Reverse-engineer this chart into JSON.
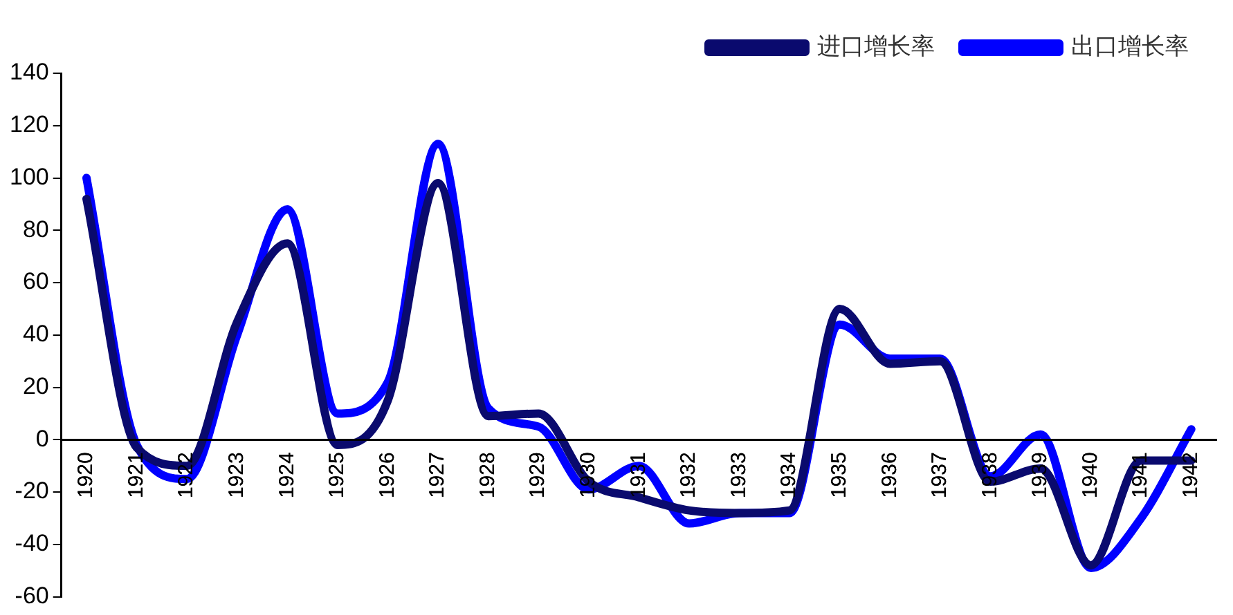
{
  "chart_data": {
    "type": "line",
    "categories": [
      "1920",
      "1921",
      "1922",
      "1923",
      "1924",
      "1925",
      "1926",
      "1927",
      "1928",
      "1929",
      "1930",
      "1931",
      "1932",
      "1933",
      "1934",
      "1935",
      "1936",
      "1937",
      "1938",
      "1939",
      "1940",
      "1941",
      "1942"
    ],
    "series": [
      {
        "name": "进口增长率",
        "color": "#0a0a6e",
        "values": [
          92,
          -3,
          -10,
          45,
          75,
          -2,
          15,
          98,
          9,
          10,
          -16,
          -22,
          -27,
          -28,
          -27,
          50,
          29,
          30,
          -16,
          -11,
          -48,
          -8,
          -8
        ]
      },
      {
        "name": "出口增长率",
        "color": "#0000ff",
        "values": [
          100,
          -2,
          -15,
          40,
          88,
          10,
          22,
          113,
          12,
          5,
          -19,
          -10,
          -32,
          -28,
          -28,
          44,
          31,
          31,
          -14,
          2,
          -49,
          -30,
          4
        ]
      }
    ],
    "ylim": [
      -60,
      140
    ],
    "yticks": [
      -60,
      -40,
      -20,
      0,
      20,
      40,
      60,
      80,
      100,
      120,
      140
    ],
    "grid": false,
    "legend": "top right",
    "marker": "none",
    "line_style": "solid"
  }
}
